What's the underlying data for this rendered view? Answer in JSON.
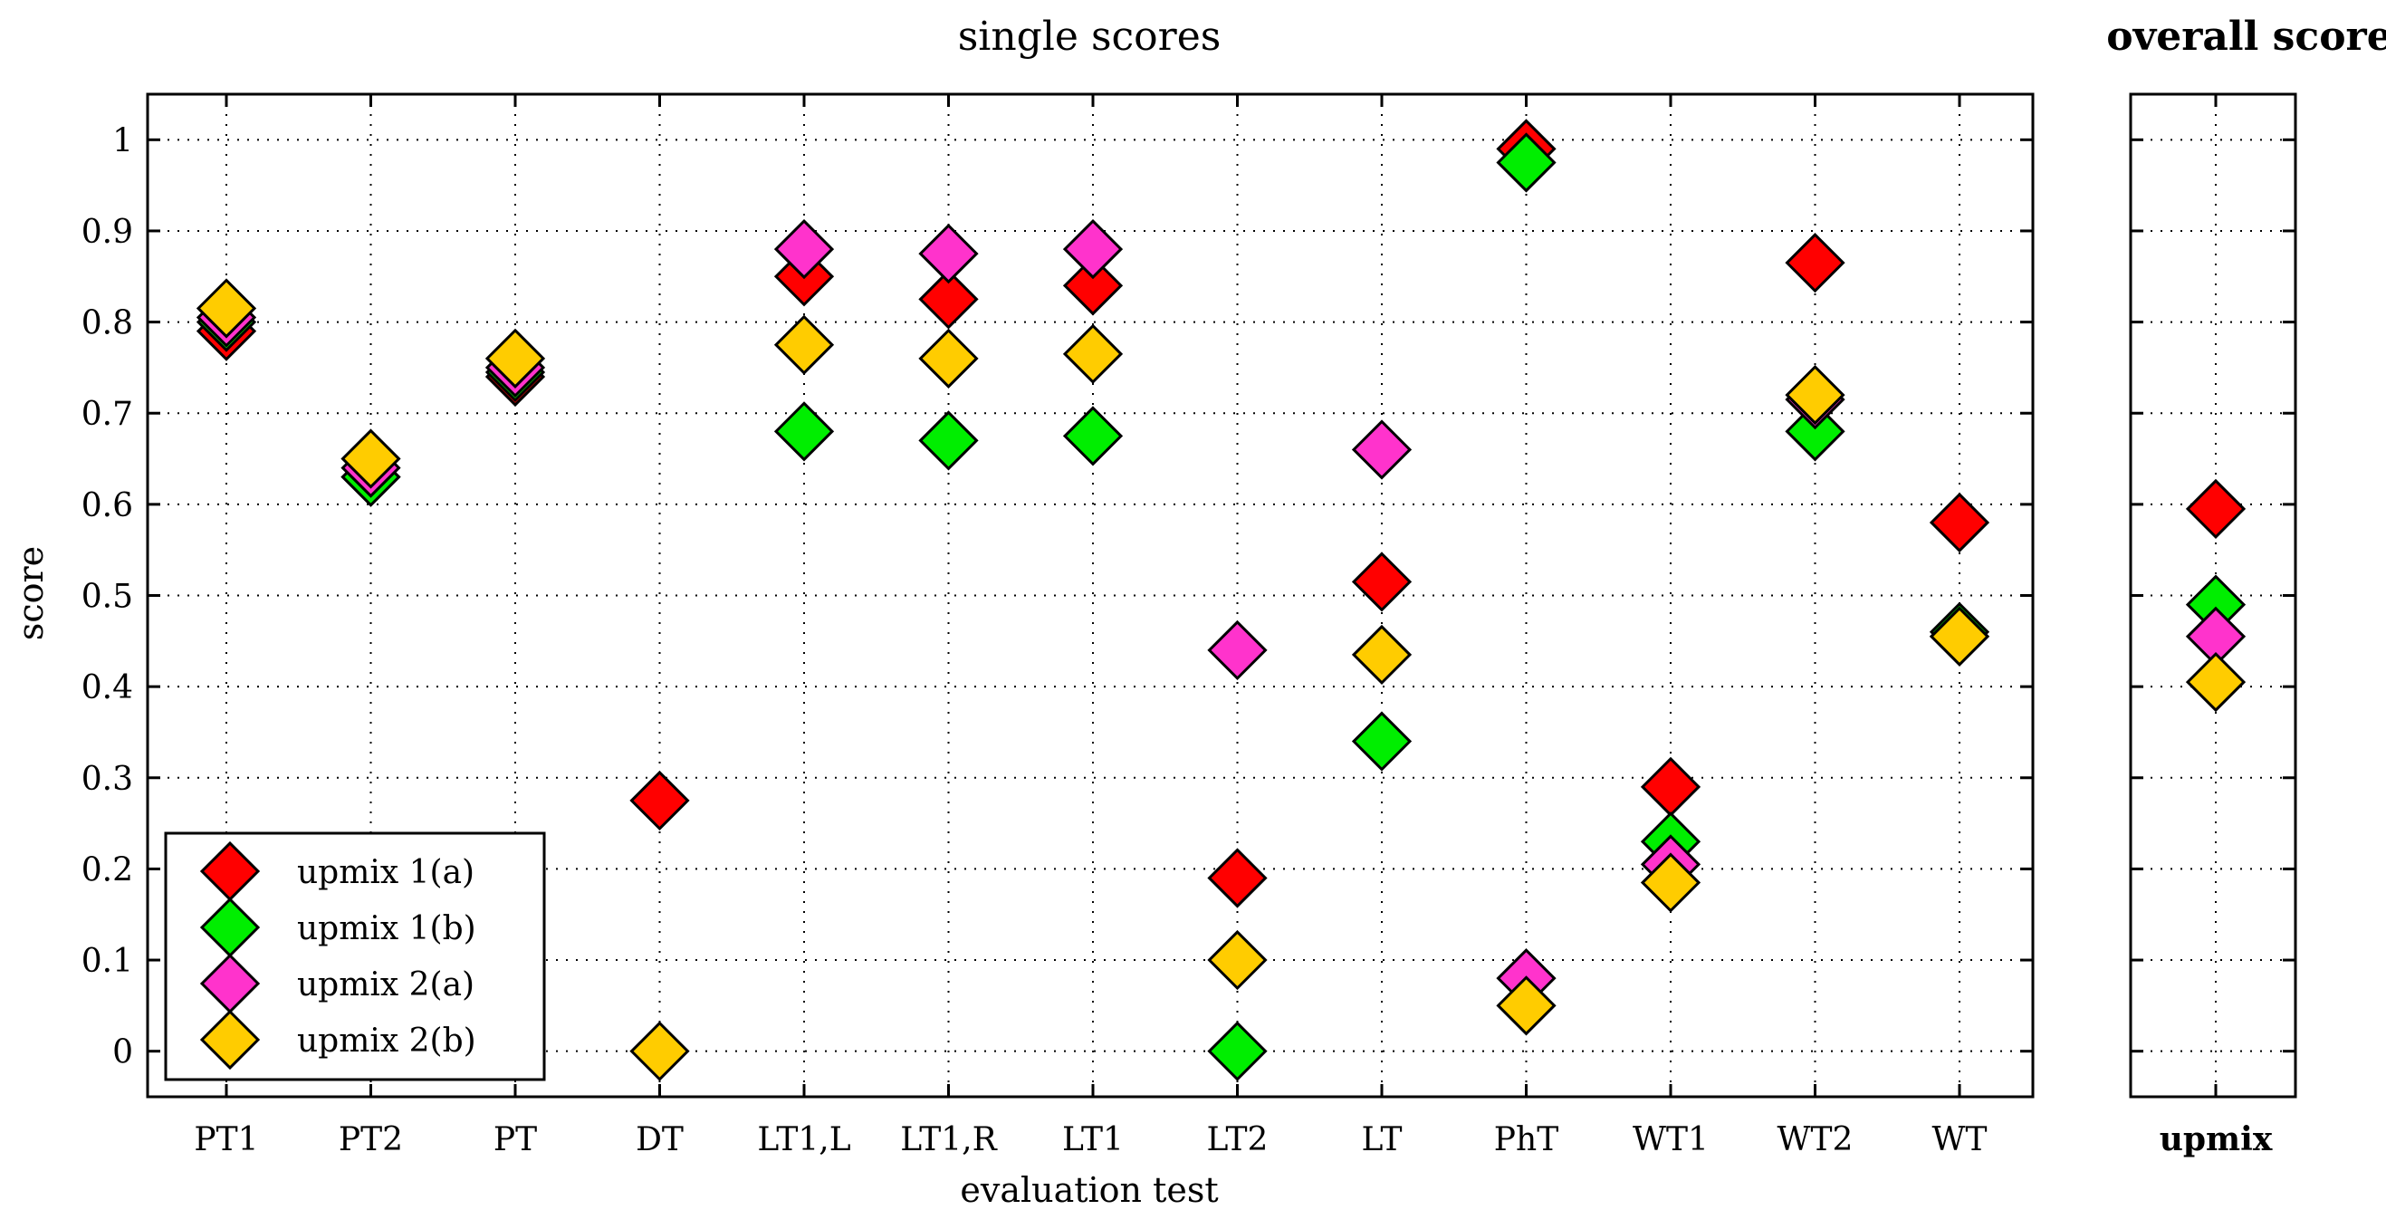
{
  "chart_data": [
    {
      "type": "scatter",
      "title": "single scores",
      "xlabel": "evaluation test",
      "ylabel": "score",
      "ylim": [
        -0.05,
        1.05
      ],
      "yticks": [
        0,
        0.1,
        0.2,
        0.3,
        0.4,
        0.5,
        0.6,
        0.7,
        0.8,
        0.9,
        1
      ],
      "ytick_labels": [
        "0",
        "0.1",
        "0.2",
        "0.3",
        "0.4",
        "0.5",
        "0.6",
        "0.7",
        "0.8",
        "0.9",
        "1"
      ],
      "grid": true,
      "legend_position": "bottom-left",
      "categories": [
        "PT1",
        "PT2",
        "PT",
        "DT",
        "LT1,L",
        "LT1,R",
        "LT1",
        "LT2",
        "LT",
        "PhT",
        "WT1",
        "WT2",
        "WT"
      ],
      "series": [
        {
          "name": "upmix 1(a)",
          "color": "#ff0000",
          "values": [
            0.79,
            0.63,
            0.74,
            0.275,
            0.85,
            0.825,
            0.84,
            0.19,
            0.515,
            0.99,
            0.29,
            0.865,
            0.58
          ]
        },
        {
          "name": "upmix 1(b)",
          "color": "#00ee00",
          "values": [
            0.8,
            0.63,
            0.745,
            null,
            0.68,
            0.67,
            0.675,
            0.0,
            0.34,
            0.975,
            0.23,
            0.68,
            0.46
          ]
        },
        {
          "name": "upmix 2(a)",
          "color": "#ff33cc",
          "values": [
            0.805,
            0.64,
            0.75,
            null,
            0.88,
            0.875,
            0.88,
            0.44,
            0.66,
            0.08,
            0.205,
            0.715,
            0.455
          ]
        },
        {
          "name": "upmix 2(b)",
          "color": "#ffcc00",
          "values": [
            0.815,
            0.65,
            0.76,
            0.0,
            0.775,
            0.76,
            0.765,
            0.1,
            0.435,
            0.05,
            0.185,
            0.72,
            0.455
          ]
        }
      ]
    },
    {
      "type": "scatter",
      "title": "overall score",
      "categories": [
        "upmix"
      ],
      "ylim": [
        -0.05,
        1.05
      ],
      "grid": true,
      "series": [
        {
          "name": "upmix 1(a)",
          "color": "#ff0000",
          "values": [
            0.595
          ]
        },
        {
          "name": "upmix 1(b)",
          "color": "#00ee00",
          "values": [
            0.49
          ]
        },
        {
          "name": "upmix 2(a)",
          "color": "#ff33cc",
          "values": [
            0.455
          ]
        },
        {
          "name": "upmix 2(b)",
          "color": "#ffcc00",
          "values": [
            0.405
          ]
        }
      ]
    }
  ]
}
